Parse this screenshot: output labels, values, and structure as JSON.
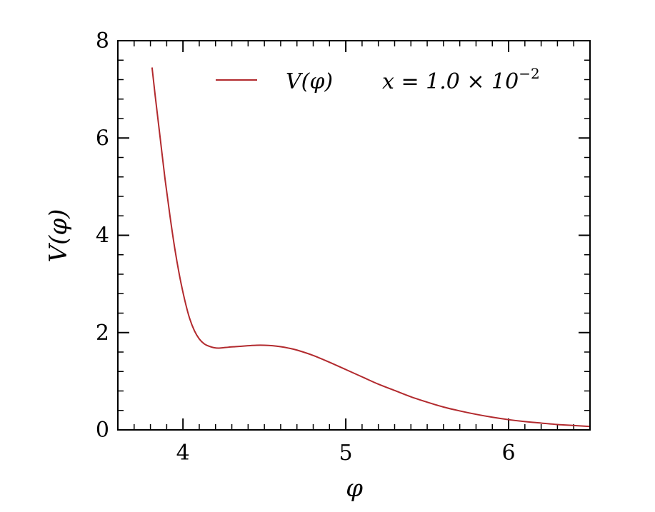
{
  "chart_data": {
    "type": "line",
    "xlabel": "φ",
    "ylabel": "V(φ)",
    "xlim": [
      3.6,
      6.5
    ],
    "ylim": [
      0,
      8
    ],
    "xticks": [
      4,
      5,
      6
    ],
    "yticks": [
      0,
      2,
      4,
      6,
      8
    ],
    "x_minor_step": 0.1,
    "y_minor_step": 0.4,
    "grid": false,
    "legend_position": "top-right",
    "series": [
      {
        "name": "V(φ)",
        "color": "#b22a2e",
        "x": [
          3.81,
          3.83,
          3.86,
          3.89,
          3.92,
          3.95,
          3.98,
          4.01,
          4.04,
          4.07,
          4.1,
          4.13,
          4.16,
          4.19,
          4.22,
          4.25,
          4.28,
          4.32,
          4.36,
          4.4,
          4.45,
          4.5,
          4.55,
          4.6,
          4.65,
          4.7,
          4.8,
          4.9,
          5.0,
          5.1,
          5.2,
          5.3,
          5.4,
          5.5,
          5.6,
          5.7,
          5.8,
          5.9,
          6.0,
          6.1,
          6.2,
          6.3,
          6.4,
          6.5
        ],
        "y": [
          7.45,
          6.85,
          6.0,
          5.15,
          4.4,
          3.72,
          3.15,
          2.68,
          2.3,
          2.04,
          1.87,
          1.77,
          1.72,
          1.69,
          1.68,
          1.69,
          1.7,
          1.71,
          1.72,
          1.73,
          1.74,
          1.74,
          1.73,
          1.71,
          1.68,
          1.64,
          1.53,
          1.39,
          1.24,
          1.09,
          0.94,
          0.81,
          0.68,
          0.57,
          0.47,
          0.39,
          0.32,
          0.26,
          0.21,
          0.17,
          0.14,
          0.11,
          0.09,
          0.07
        ]
      }
    ],
    "annotation": {
      "legend_label": "V(φ)",
      "parameter_text_base": "x = 1.0 × 10",
      "parameter_text_exponent": "−2"
    }
  }
}
